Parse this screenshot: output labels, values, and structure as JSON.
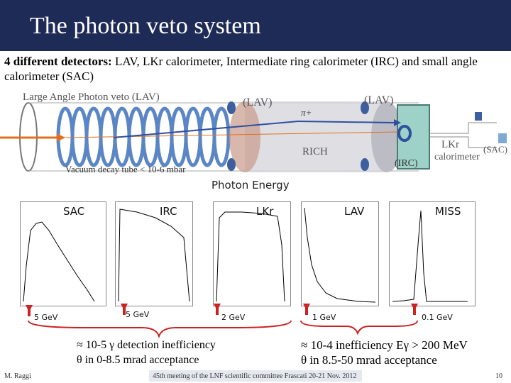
{
  "slide": {
    "title": "The photon veto system",
    "intro_bold": "4 different detectors:",
    "intro_text": " LAV, LKr calorimeter, Intermediate ring calorimeter (IRC) and small angle calorimeter (SAC)"
  },
  "detector_diagram": {
    "lav_label_main": "Large Angle Photon veto (LAV)",
    "lav_label_2": "(LAV)",
    "lav_label_3": "(LAV)",
    "pion_label": "π+",
    "rich_label": "RICH",
    "irc_label": "(IRC)",
    "lkr_label": "LKr",
    "calorimeter_label": "calorimeter",
    "sac_label": "(SAC)",
    "vacuum_label": "Vacuum  decay tube < 10-6 mbar"
  },
  "photon_energy": {
    "heading": "Photon Energy",
    "plots": [
      {
        "title": "SAC",
        "marker": "5 GeV"
      },
      {
        "title": "IRC",
        "marker": "5 GeV"
      },
      {
        "title": "LKr",
        "marker": "2 GeV"
      },
      {
        "title": "LAV",
        "marker": "1 GeV"
      },
      {
        "title": "MISS",
        "marker": "0.1 GeV"
      }
    ]
  },
  "summary": {
    "left_line1": "≈ 10-5 γ detection inefficiency",
    "left_line2": "θ in 0-8.5 mrad acceptance",
    "right_line1": "≈ 10-4 inefficiency Eγ > 200 MeV",
    "right_line2": "θ in 8.5-50 mrad acceptance"
  },
  "footer": {
    "author": "M. Raggi",
    "meeting": "45th meeting of the LNF scientific committee Frascati 20-21 Nov. 2012",
    "page": "10"
  },
  "colors": {
    "title_bar": "#1f2b57",
    "ring": "#5b86c6",
    "beam": "#e07020",
    "marker_red": "#cc2222"
  }
}
